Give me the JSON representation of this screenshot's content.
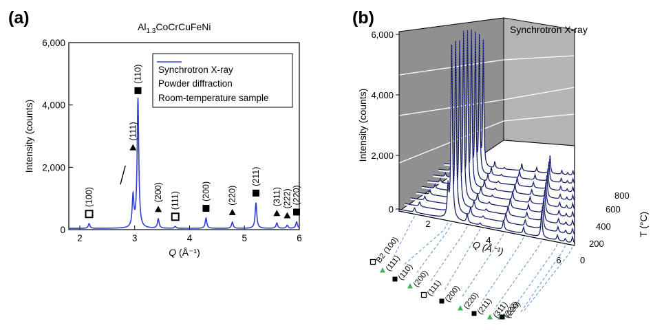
{
  "panel_a": {
    "label": "(a)",
    "title_main": "Al",
    "title_sub": "1.3",
    "title_rest": "CoCrCuFeNi",
    "legend": [
      "Synchrotron X-ray",
      "Powder diffraction",
      "Room-temperature sample"
    ],
    "ylabel": "Intensity (counts)",
    "xlabel_q": "Q",
    "xlabel_units": " (Å⁻¹)",
    "ytick_labels": [
      "0",
      "2,000",
      "4,000",
      "6,000"
    ],
    "xtick_labels": [
      "2",
      "3",
      "4",
      "5",
      "6"
    ]
  },
  "panel_b": {
    "label": "(b)",
    "title": "Synchrotron X-ray",
    "ylabel": "Intensity (counts)",
    "qlabel": "Q (Å⁻¹)",
    "tlabel": "T (°C)",
    "ytick_labels": [
      "0",
      "2,000",
      "4,000",
      "6,000"
    ],
    "qtick_labels": [
      "2",
      "4",
      "6"
    ],
    "ttick_labels": [
      "0",
      "200",
      "400",
      "600",
      "800"
    ],
    "peak_labels": [
      "B2 (100)",
      "(111)",
      "(110)",
      "(200)",
      "(111)",
      "(200)",
      "(220)",
      "(211)",
      "(311)",
      "(222)",
      "(220)"
    ]
  },
  "chart_data": [
    {
      "type": "line",
      "title": "Al1.3CoCrCuFeNi",
      "xlabel": "Q (Å⁻¹)",
      "ylabel": "Intensity (counts)",
      "xlim": [
        1.8,
        6.0
      ],
      "ylim": [
        0,
        6000
      ],
      "grid": false,
      "legend_position": "top-right",
      "series": [
        {
          "name": "Synchrotron X-ray",
          "color": "#2f3fd0",
          "peaks": [
            {
              "q": 2.17,
              "intensity": 150
            },
            {
              "q": 2.97,
              "intensity": 1000
            },
            {
              "q": 3.06,
              "intensity": 4150
            },
            {
              "q": 3.43,
              "intensity": 300
            },
            {
              "q": 3.74,
              "intensity": 60
            },
            {
              "q": 4.3,
              "intensity": 330
            },
            {
              "q": 4.78,
              "intensity": 200
            },
            {
              "q": 5.21,
              "intensity": 820
            },
            {
              "q": 5.59,
              "intensity": 170
            },
            {
              "q": 5.78,
              "intensity": 100
            },
            {
              "q": 5.95,
              "intensity": 210
            }
          ]
        }
      ],
      "annotations": [
        {
          "label": "(100)",
          "q": 2.17,
          "marker": "open-square"
        },
        {
          "label": "(111)",
          "q": 2.97,
          "marker": "triangle"
        },
        {
          "label": "(110)",
          "q": 3.06,
          "marker": "filled-square"
        },
        {
          "label": "(200)",
          "q": 3.43,
          "marker": "triangle"
        },
        {
          "label": "(111)",
          "q": 3.74,
          "marker": "open-square"
        },
        {
          "label": "(200)",
          "q": 4.3,
          "marker": "filled-square"
        },
        {
          "label": "(220)",
          "q": 4.78,
          "marker": "triangle"
        },
        {
          "label": "(211)",
          "q": 5.21,
          "marker": "filled-square"
        },
        {
          "label": "(311)",
          "q": 5.59,
          "marker": "triangle"
        },
        {
          "label": "(222)",
          "q": 5.78,
          "marker": "triangle"
        },
        {
          "label": "(220)",
          "q": 5.95,
          "marker": "filled-square"
        }
      ]
    },
    {
      "type": "line",
      "title": "Synchrotron X-ray",
      "xlabel": "Q (Å⁻¹)",
      "ylabel": "Intensity (counts)",
      "zlabel": "T (°C)",
      "xlim": [
        1.8,
        6.0
      ],
      "ylim": [
        0,
        6000
      ],
      "zlim": [
        0,
        900
      ],
      "temperatures": [
        25,
        100,
        200,
        300,
        400,
        500,
        600,
        700,
        800
      ],
      "series_color": "#2f3fd0",
      "peak_q": [
        2.17,
        2.97,
        3.06,
        3.43,
        3.74,
        4.3,
        4.78,
        5.21,
        5.59,
        5.78,
        5.95
      ],
      "main_peak_intensity_by_temperature": [
        6000,
        5800,
        5600,
        5700,
        5500,
        5300,
        5000,
        4700,
        4300
      ]
    }
  ]
}
